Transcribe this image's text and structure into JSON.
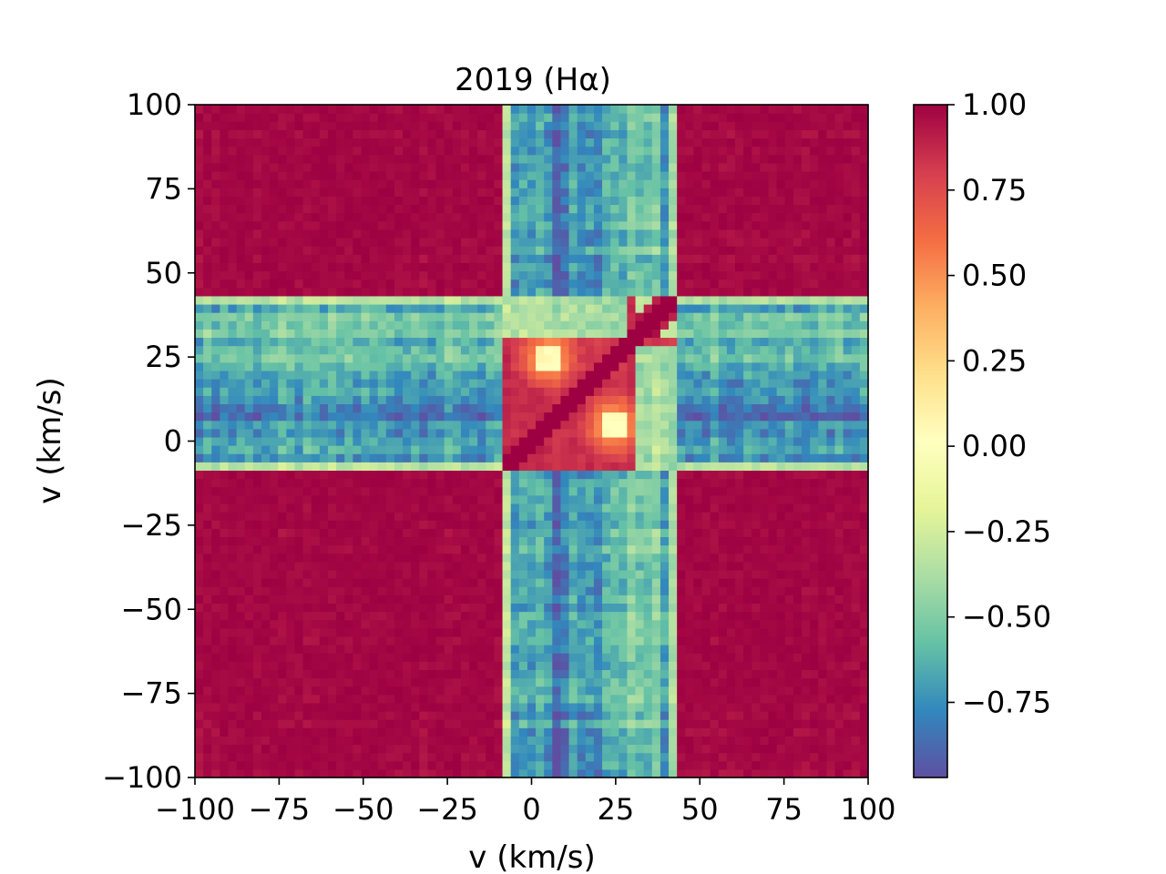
{
  "chart_data": {
    "type": "heatmap",
    "title": "2019 (Hα)",
    "xlabel": "v (km/s)",
    "ylabel": "v (km/s)",
    "xlim": [
      -100,
      100
    ],
    "ylim": [
      -100,
      100
    ],
    "x_ticks": [
      "−100",
      "−75",
      "−50",
      "−25",
      "0",
      "25",
      "50",
      "75",
      "100"
    ],
    "y_ticks": [
      "−100",
      "−75",
      "−50",
      "−25",
      "0",
      "25",
      "50",
      "75",
      "100"
    ],
    "x_tick_values": [
      -100,
      -75,
      -50,
      -25,
      0,
      25,
      50,
      75,
      100
    ],
    "y_tick_values": [
      -100,
      -75,
      -50,
      -25,
      0,
      25,
      50,
      75,
      100
    ],
    "grid": false,
    "colormap": "Spectral",
    "color_range": [
      -0.97,
      1.0
    ],
    "colorbar_ticks": [
      "1.00",
      "0.75",
      "0.50",
      "0.25",
      "0.00",
      "−0.25",
      "−0.50",
      "−0.75"
    ],
    "colorbar_tick_values": [
      1.0,
      0.75,
      0.5,
      0.25,
      0.0,
      -0.25,
      -0.5,
      -0.75
    ],
    "colorbar_stops": [
      "#5e4fa2",
      "#3288bd",
      "#66c2a5",
      "#abdda4",
      "#e6f598",
      "#ffffbf",
      "#fee08b",
      "#fdae61",
      "#f46d43",
      "#d53e4f",
      "#9e0142"
    ],
    "grid_points_per_axis": 81,
    "structure": {
      "line_velocity_range": [
        -10,
        45
      ],
      "diagonal_correlation": 1.0,
      "off_line_correlation": 1.0,
      "line_edge_correlation": -0.1,
      "line_core_correlation": -0.7,
      "blue_peak_center": [
        5,
        25
      ],
      "red_peak_center": [
        25,
        5
      ]
    }
  }
}
